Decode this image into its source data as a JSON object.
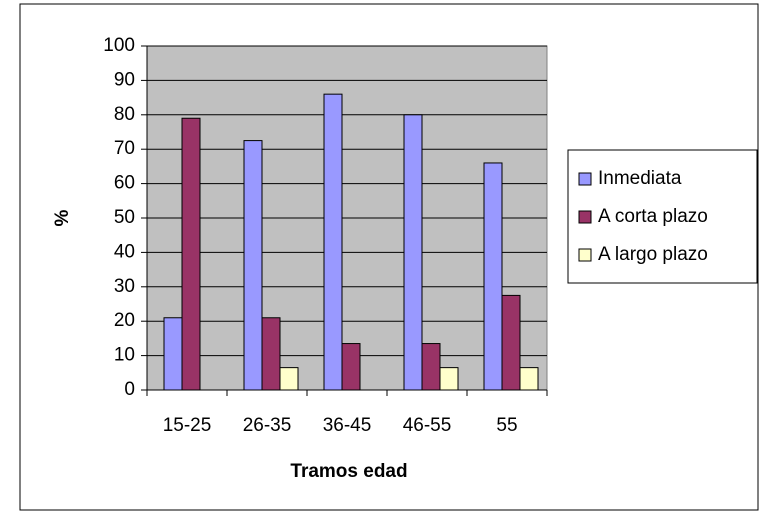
{
  "chart_data": {
    "type": "bar",
    "categories": [
      "15-25",
      "26-35",
      "36-45",
      "46-55",
      "55"
    ],
    "series": [
      {
        "name": "Inmediata",
        "color": "#9999ff",
        "values": [
          21,
          72.5,
          86,
          80,
          66
        ]
      },
      {
        "name": "A corta plazo",
        "color": "#993366",
        "values": [
          79,
          21,
          13.5,
          13.5,
          27.5
        ]
      },
      {
        "name": "A largo plazo",
        "color": "#ffffcc",
        "values": [
          0,
          6.5,
          0,
          6.5,
          6.5
        ]
      }
    ],
    "ylabel": "%",
    "xlabel": "Tramos edad",
    "ylim": [
      0,
      100
    ],
    "yticks": [
      0,
      10,
      20,
      30,
      40,
      50,
      60,
      70,
      80,
      90,
      100
    ],
    "grid": true,
    "legend": "right"
  }
}
